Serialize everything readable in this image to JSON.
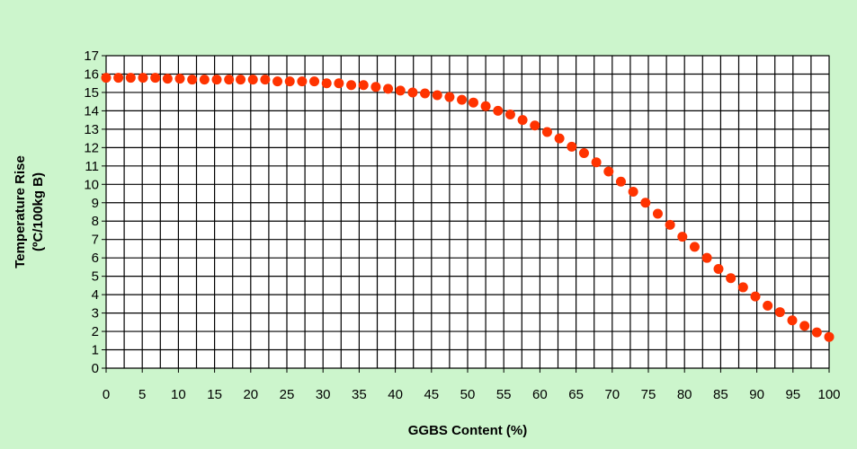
{
  "chart_data": {
    "type": "scatter",
    "title": "",
    "xlabel": "GGBS Content (%)",
    "ylabel_lines": [
      "Temperature Rise",
      "(ºC/100kg B)"
    ],
    "xlim": [
      0,
      100
    ],
    "ylim": [
      0,
      17
    ],
    "xticks": [
      0,
      5,
      10,
      15,
      20,
      25,
      30,
      35,
      40,
      45,
      50,
      55,
      60,
      65,
      70,
      75,
      80,
      85,
      90,
      95,
      100
    ],
    "yticks": [
      0,
      1,
      2,
      3,
      4,
      5,
      6,
      7,
      8,
      9,
      10,
      11,
      12,
      13,
      14,
      15,
      16,
      17
    ],
    "grid": true,
    "legend": "none",
    "marker_color": "#ff3300",
    "background_color": "#ccf5cc",
    "plot_background": "#ffffff",
    "series": [
      {
        "points": [
          [
            0,
            15.8
          ],
          [
            1.7,
            15.8
          ],
          [
            3.4,
            15.8
          ],
          [
            5.1,
            15.8
          ],
          [
            6.8,
            15.8
          ],
          [
            8.5,
            15.75
          ],
          [
            10.2,
            15.75
          ],
          [
            11.9,
            15.7
          ],
          [
            13.6,
            15.7
          ],
          [
            15.3,
            15.7
          ],
          [
            17.0,
            15.7
          ],
          [
            18.6,
            15.7
          ],
          [
            20.3,
            15.7
          ],
          [
            22.0,
            15.7
          ],
          [
            23.7,
            15.6
          ],
          [
            25.4,
            15.6
          ],
          [
            27.1,
            15.6
          ],
          [
            28.8,
            15.6
          ],
          [
            30.5,
            15.5
          ],
          [
            32.2,
            15.5
          ],
          [
            33.9,
            15.4
          ],
          [
            35.6,
            15.4
          ],
          [
            37.3,
            15.3
          ],
          [
            39.0,
            15.2
          ],
          [
            40.7,
            15.1
          ],
          [
            42.4,
            15.0
          ],
          [
            44.1,
            14.95
          ],
          [
            45.8,
            14.85
          ],
          [
            47.5,
            14.75
          ],
          [
            49.2,
            14.6
          ],
          [
            50.8,
            14.45
          ],
          [
            52.5,
            14.25
          ],
          [
            54.2,
            14.0
          ],
          [
            55.9,
            13.8
          ],
          [
            57.6,
            13.5
          ],
          [
            59.3,
            13.2
          ],
          [
            61.0,
            12.85
          ],
          [
            62.7,
            12.5
          ],
          [
            64.4,
            12.05
          ],
          [
            66.1,
            11.7
          ],
          [
            67.8,
            11.2
          ],
          [
            69.5,
            10.7
          ],
          [
            71.2,
            10.15
          ],
          [
            72.9,
            9.6
          ],
          [
            74.6,
            9.0
          ],
          [
            76.3,
            8.4
          ],
          [
            78.0,
            7.8
          ],
          [
            79.7,
            7.15
          ],
          [
            81.4,
            6.6
          ],
          [
            83.1,
            6.0
          ],
          [
            84.7,
            5.4
          ],
          [
            86.4,
            4.9
          ],
          [
            88.1,
            4.4
          ],
          [
            89.8,
            3.9
          ],
          [
            91.5,
            3.4
          ],
          [
            93.2,
            3.05
          ],
          [
            94.9,
            2.6
          ],
          [
            96.6,
            2.3
          ],
          [
            98.3,
            1.95
          ],
          [
            100,
            1.7
          ]
        ]
      }
    ]
  }
}
